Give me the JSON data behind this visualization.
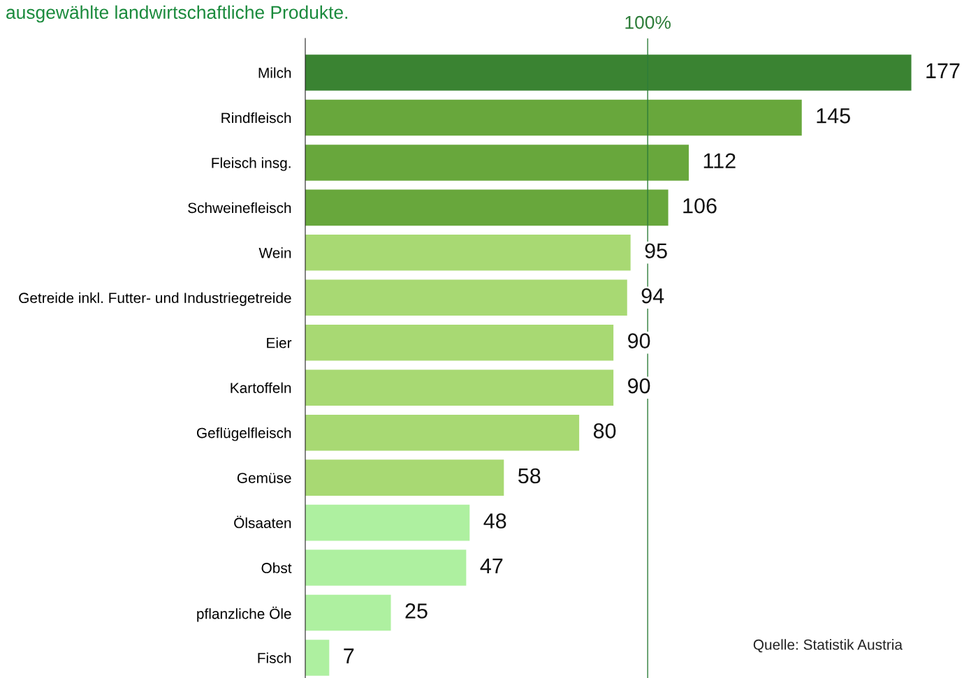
{
  "chart_data": {
    "type": "bar",
    "orientation": "horizontal",
    "title": "ausgewählte landwirtschaftliche Produkte.",
    "categories": [
      "Milch",
      "Rindfleisch",
      "Fleisch insg.",
      "Schweinefleisch",
      "Wein",
      "Getreide inkl. Futter- und Industriegetreide",
      "Eier",
      "Kartoffeln",
      "Geflügelfleisch",
      "Gemüse",
      "Ölsaaten",
      "Obst",
      "pflanzliche Öle",
      "Fisch"
    ],
    "values": [
      177,
      145,
      112,
      106,
      95,
      94,
      90,
      90,
      80,
      58,
      48,
      47,
      25,
      7
    ],
    "colors": [
      "#3a8332",
      "#68a73c",
      "#68a73c",
      "#68a73c",
      "#a8d973",
      "#a8d973",
      "#a8d973",
      "#a8d973",
      "#a8d973",
      "#a8d973",
      "#aef0a0",
      "#aef0a0",
      "#aef0a0",
      "#aef0a0"
    ],
    "tick_labels": "y",
    "data_labels": true,
    "grid": false,
    "ref_lines": [
      {
        "axis": "x",
        "value": 100,
        "label": "100%",
        "color": "#2e7d3a"
      }
    ],
    "annotations": [
      "Quelle: Statistik Austria"
    ]
  }
}
